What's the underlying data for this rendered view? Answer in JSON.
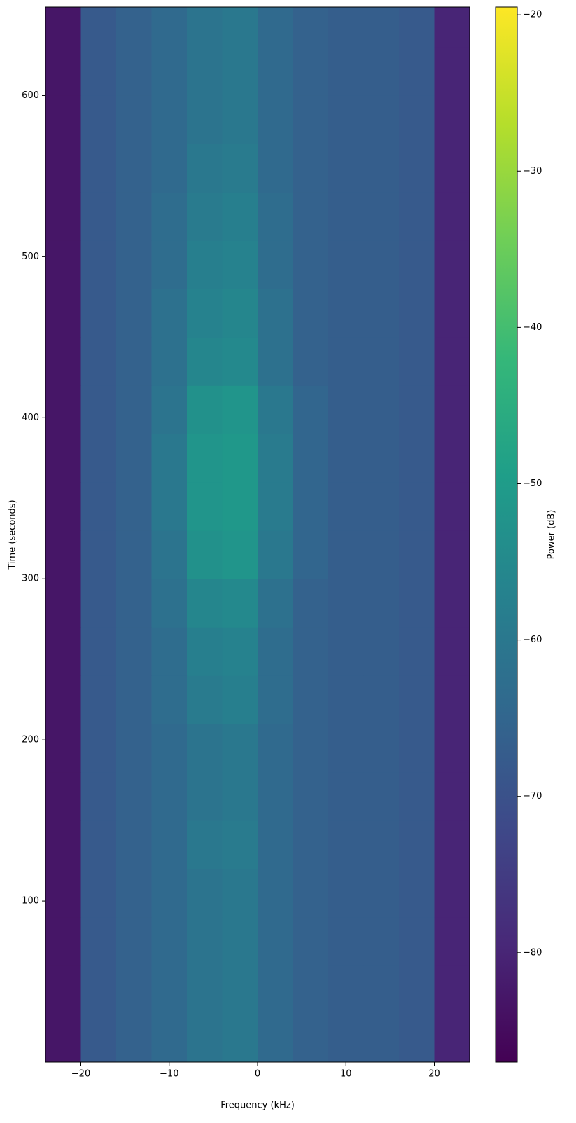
{
  "chart_data": {
    "type": "heatmap",
    "xlabel": "Frequency (kHz)",
    "ylabel": "Time (seconds)",
    "colorbar_label": "Power (dB)",
    "colormap": "viridis",
    "xlim": [
      -24,
      24
    ],
    "ylim": [
      0,
      655
    ],
    "clim": [
      -87,
      -19.5
    ],
    "xticks": [
      {
        "value": -20,
        "label": "−20"
      },
      {
        "value": -10,
        "label": "−10"
      },
      0,
      10,
      20
    ],
    "yticks": [
      100,
      200,
      300,
      400,
      500,
      600
    ],
    "cticks": [
      {
        "value": -80,
        "label": "−80"
      },
      {
        "value": -70,
        "label": "−70"
      },
      {
        "value": -60,
        "label": "−60"
      },
      {
        "value": -50,
        "label": "−50"
      },
      {
        "value": -40,
        "label": "−40"
      },
      {
        "value": -30,
        "label": "−30"
      },
      {
        "value": -20,
        "label": "−20"
      }
    ],
    "x_edges": [
      -24,
      -20,
      -16,
      -12,
      -8,
      -4,
      0,
      4,
      8,
      12,
      16,
      20,
      24
    ],
    "y_edges": [
      0,
      30,
      60,
      90,
      120,
      150,
      180,
      210,
      240,
      270,
      300,
      330,
      360,
      390,
      420,
      450,
      480,
      510,
      540,
      570,
      600,
      630,
      655
    ],
    "z": [
      [
        -83,
        -68,
        -66,
        -64,
        -61,
        -60,
        -64,
        -66,
        -67,
        -67,
        -68,
        -80
      ],
      [
        -83,
        -68,
        -66,
        -64,
        -61,
        -60,
        -64,
        -66,
        -67,
        -67,
        -68,
        -80
      ],
      [
        -83,
        -68,
        -66,
        -64,
        -61,
        -60,
        -64,
        -66,
        -67,
        -67,
        -68,
        -80
      ],
      [
        -83,
        -68,
        -66,
        -64,
        -61,
        -60,
        -64,
        -66,
        -67,
        -67,
        -68,
        -80
      ],
      [
        -83,
        -68,
        -66,
        -64,
        -60,
        -59,
        -64,
        -66,
        -67,
        -67,
        -68,
        -80
      ],
      [
        -83,
        -68,
        -66,
        -64,
        -61,
        -60,
        -64,
        -66,
        -67,
        -67,
        -68,
        -80
      ],
      [
        -83,
        -68,
        -66,
        -64,
        -61,
        -60,
        -64,
        -66,
        -67,
        -67,
        -68,
        -80
      ],
      [
        -83,
        -68,
        -66,
        -63,
        -59,
        -58,
        -63,
        -66,
        -67,
        -67,
        -68,
        -80
      ],
      [
        -83,
        -68,
        -66,
        -63,
        -58,
        -57,
        -63,
        -66,
        -67,
        -67,
        -68,
        -80
      ],
      [
        -83,
        -68,
        -66,
        -62,
        -56,
        -55,
        -62,
        -66,
        -67,
        -67,
        -68,
        -80
      ],
      [
        -83,
        -68,
        -66,
        -61,
        -53,
        -52,
        -60,
        -65,
        -67,
        -67,
        -68,
        -80
      ],
      [
        -83,
        -68,
        -66,
        -60,
        -52,
        -51,
        -59,
        -65,
        -67,
        -67,
        -68,
        -80
      ],
      [
        -83,
        -68,
        -66,
        -60,
        -52,
        -51,
        -59,
        -65,
        -67,
        -67,
        -68,
        -80
      ],
      [
        -83,
        -68,
        -66,
        -61,
        -53,
        -52,
        -60,
        -65,
        -67,
        -67,
        -68,
        -80
      ],
      [
        -83,
        -68,
        -66,
        -62,
        -56,
        -55,
        -62,
        -66,
        -67,
        -67,
        -68,
        -80
      ],
      [
        -83,
        -68,
        -66,
        -62,
        -57,
        -56,
        -62,
        -66,
        -67,
        -67,
        -68,
        -80
      ],
      [
        -83,
        -68,
        -66,
        -63,
        -58,
        -57,
        -63,
        -66,
        -67,
        -67,
        -68,
        -80
      ],
      [
        -83,
        -68,
        -66,
        -63,
        -59,
        -58,
        -63,
        -66,
        -67,
        -67,
        -68,
        -80
      ],
      [
        -83,
        -68,
        -66,
        -64,
        -60,
        -59,
        -64,
        -66,
        -67,
        -67,
        -68,
        -80
      ],
      [
        -83,
        -68,
        -66,
        -64,
        -61,
        -60,
        -64,
        -66,
        -67,
        -67,
        -68,
        -80
      ],
      [
        -83,
        -68,
        -66,
        -64,
        -61,
        -60,
        -64,
        -66,
        -67,
        -67,
        -68,
        -80
      ],
      [
        -83,
        -68,
        -66,
        -64,
        -61,
        -60,
        -64,
        -66,
        -67,
        -67,
        -68,
        -80
      ]
    ]
  }
}
